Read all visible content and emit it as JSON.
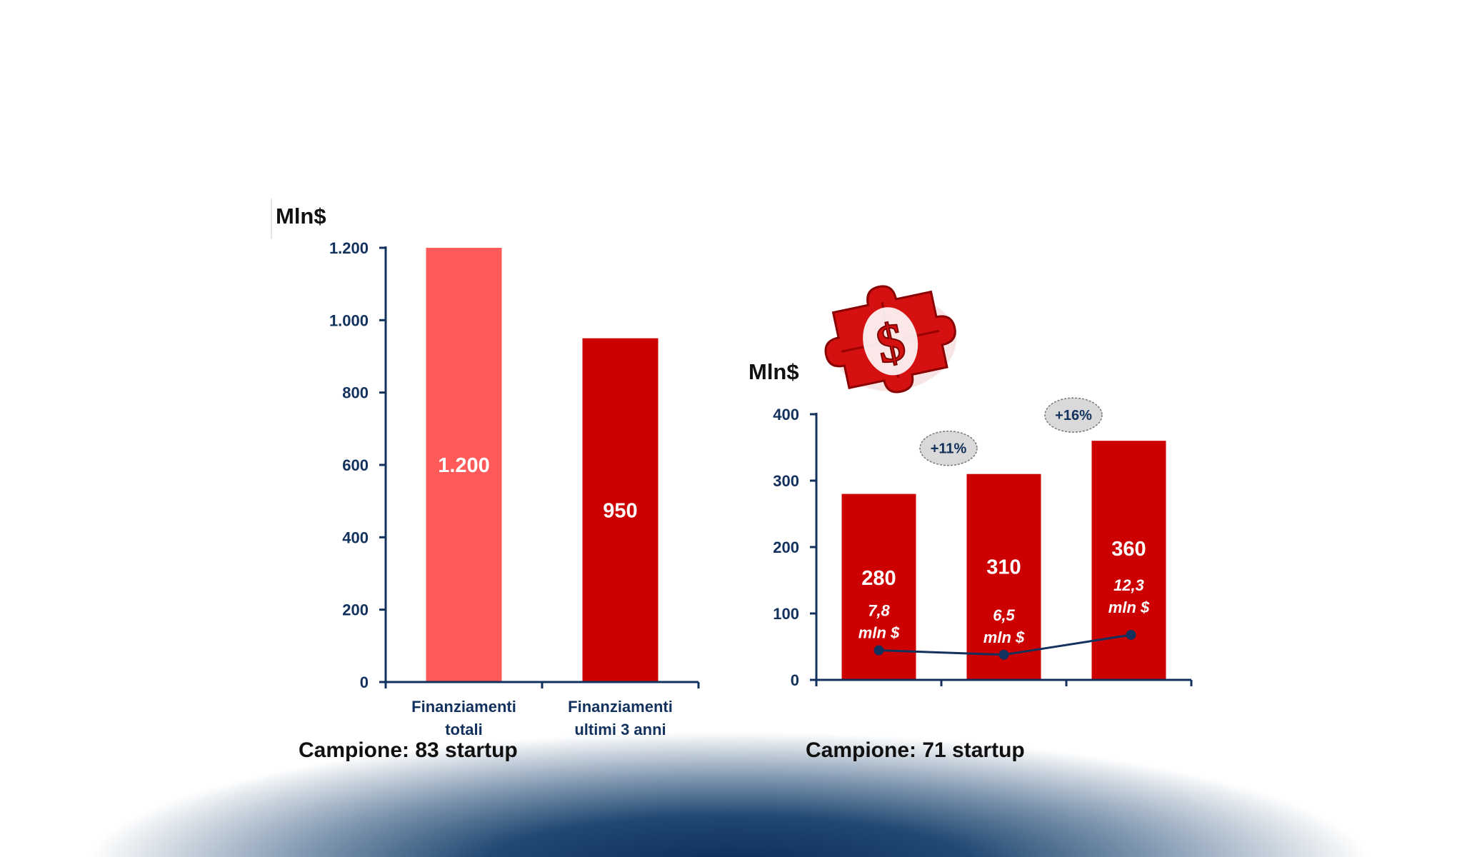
{
  "colors": {
    "bar_light": "#ff5a5a",
    "bar_dark": "#cc0000",
    "axis": "#12315c",
    "line": "#12315c",
    "badge_fill": "#d9d9d9"
  },
  "icon": "dollar-puzzle-icon",
  "chart_data": [
    {
      "type": "bar",
      "title": "",
      "unit_label": "Mln$",
      "xlabel": "",
      "ylabel": "Mln$",
      "ylim": [
        0,
        1200
      ],
      "yticks": [
        0,
        200,
        400,
        600,
        800,
        1000,
        1200
      ],
      "ytick_labels": [
        "0",
        "200",
        "400",
        "600",
        "800",
        "1.000",
        "1.200"
      ],
      "categories": [
        "Finanziamenti totali",
        "Finanziamenti ultimi 3 anni"
      ],
      "category_lines": [
        [
          "Finanziamenti",
          "totali"
        ],
        [
          "Finanziamenti",
          "ultimi 3 anni"
        ]
      ],
      "values": [
        1200,
        950
      ],
      "value_labels": [
        "1.200",
        "950"
      ],
      "bar_colors": [
        "#ff5a5a",
        "#cc0000"
      ],
      "caption": "Campione: 83 startup",
      "grid": false
    },
    {
      "type": "bar",
      "title": "",
      "unit_label": "Mln$",
      "xlabel": "",
      "ylabel": "Mln$",
      "ylim": [
        0,
        400
      ],
      "yticks": [
        0,
        100,
        200,
        300,
        400
      ],
      "ytick_labels": [
        "0",
        "100",
        "200",
        "300",
        "400"
      ],
      "categories": [
        "",
        "",
        ""
      ],
      "values": [
        280,
        310,
        360
      ],
      "value_labels": [
        "280",
        "310",
        "360"
      ],
      "bar_colors": [
        "#cc0000",
        "#cc0000",
        "#cc0000"
      ],
      "line_series": {
        "values": [
          7.8,
          6.5,
          12.3
        ],
        "labels": [
          [
            "7,8",
            "mln $"
          ],
          [
            "6,5",
            "mln $"
          ],
          [
            "12,3",
            "mln $"
          ]
        ]
      },
      "growth_labels": [
        "+11%",
        "+16%"
      ],
      "caption": "Campione: 71 startup",
      "grid": false
    }
  ]
}
